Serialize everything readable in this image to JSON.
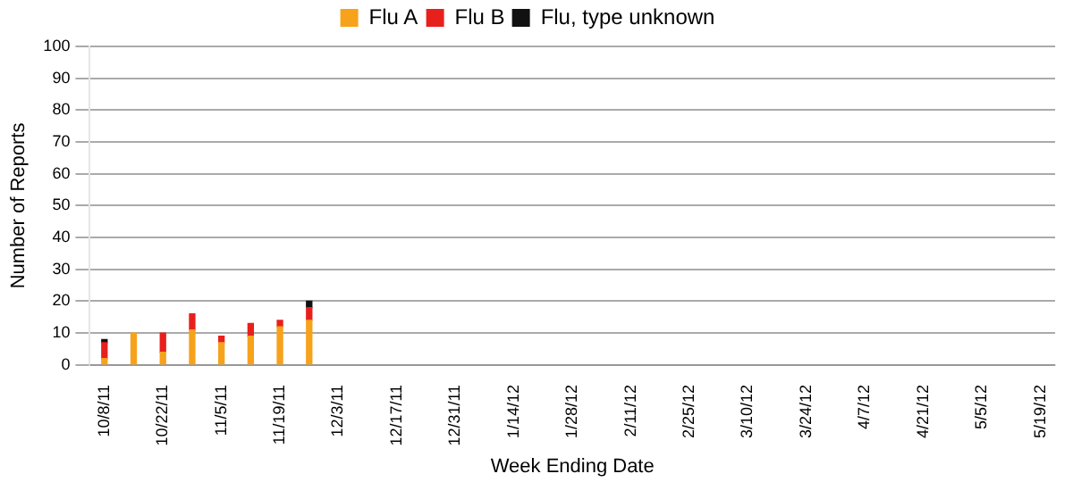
{
  "chart_data": {
    "type": "bar",
    "stacked": true,
    "xlabel": "Week Ending Date",
    "ylabel": "Number of Reports",
    "categories": [
      "10/8/11",
      null,
      "10/22/11",
      null,
      "11/5/11",
      null,
      "11/19/11",
      null,
      "12/3/11",
      null,
      "12/17/11",
      null,
      "12/31/11",
      null,
      "1/14/12",
      null,
      "1/28/12",
      null,
      "2/11/12",
      null,
      "2/25/12",
      null,
      "3/10/12",
      null,
      "3/24/12",
      null,
      "4/7/12",
      null,
      "4/21/12",
      null,
      "5/5/12",
      null,
      "5/19/12"
    ],
    "series": [
      {
        "name": "Flu A",
        "color": "#f7a21b",
        "values": [
          2,
          10,
          4,
          11,
          7,
          9,
          12,
          14,
          null,
          null,
          null,
          null,
          null,
          null,
          null,
          null,
          null,
          null,
          null,
          null,
          null,
          null,
          null,
          null,
          null,
          null,
          null,
          null,
          null,
          null,
          null,
          null,
          null
        ]
      },
      {
        "name": "Flu B",
        "color": "#e8201c",
        "values": [
          5,
          null,
          6,
          5,
          2,
          4,
          2,
          4,
          null,
          null,
          null,
          null,
          null,
          null,
          null,
          null,
          null,
          null,
          null,
          null,
          null,
          null,
          null,
          null,
          null,
          null,
          null,
          null,
          null,
          null,
          null,
          null,
          null
        ]
      },
      {
        "name": "Flu, type unknown",
        "color": "#111111",
        "values": [
          1,
          null,
          null,
          null,
          null,
          null,
          null,
          2,
          null,
          null,
          null,
          null,
          null,
          null,
          null,
          null,
          null,
          null,
          null,
          null,
          null,
          null,
          null,
          null,
          null,
          null,
          null,
          null,
          null,
          null,
          null,
          null,
          null
        ]
      }
    ],
    "ylim": [
      0,
      100
    ],
    "yticks": [
      0,
      10,
      20,
      30,
      40,
      50,
      60,
      70,
      80,
      90,
      100
    ],
    "grid": "y",
    "legend": "top"
  }
}
